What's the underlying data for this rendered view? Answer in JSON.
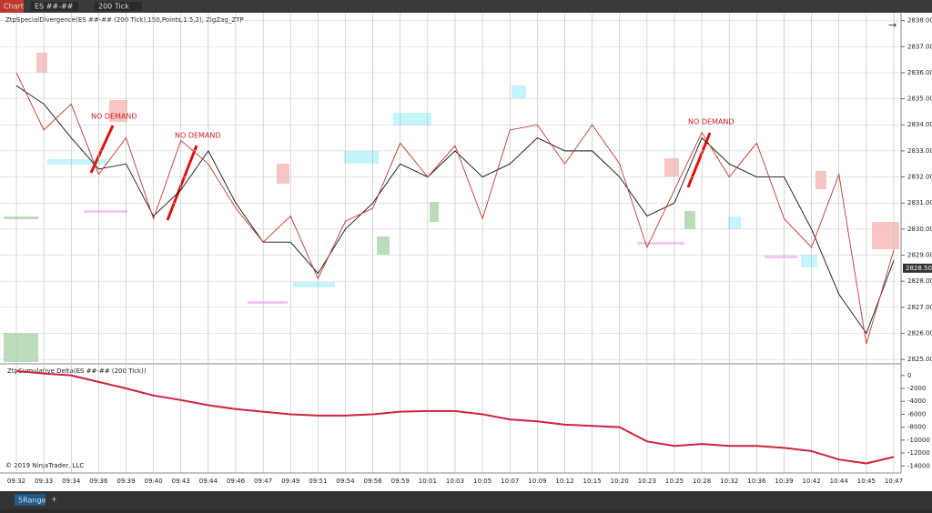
{
  "toolbar": {
    "tab": "Chart",
    "instrument": "ES ##-##",
    "interval": "200 Tick"
  },
  "chart_data": [
    {
      "type": "line",
      "title": "ZtpSpecialDivergence(ES ##-## (200 Tick),150,Points,1.5,2), ZigZag_ZTP",
      "categories": [
        "09:32",
        "09:33",
        "09:34",
        "09:36",
        "09:39",
        "09:40",
        "09:43",
        "09:44",
        "09:46",
        "09:47",
        "09:49",
        "09:51",
        "09:54",
        "09:56",
        "09:59",
        "10:01",
        "10:03",
        "10:05",
        "10:07",
        "10:09",
        "10:12",
        "10:15",
        "10:20",
        "10:23",
        "10:25",
        "10:28",
        "10:32",
        "10:36",
        "10:39",
        "10:42",
        "10:44",
        "10:45",
        "10:47"
      ],
      "series": [
        {
          "color": "#111111",
          "values": [
            2835.5,
            2834.8,
            2833.5,
            2832.3,
            2832.5,
            2830.5,
            2831.5,
            2833,
            2831,
            2829.5,
            2829.5,
            2828.3,
            2830,
            2831,
            2832.5,
            2832,
            2833,
            2832,
            2832.5,
            2833.5,
            2833,
            2833,
            2832,
            2830.5,
            2831,
            2833.5,
            2832.5,
            2832,
            2832,
            2830,
            2827.5,
            2826,
            2828.8
          ]
        },
        {
          "color": "#c0392b",
          "values": [
            2836,
            2833.8,
            2834.8,
            2832.1,
            2833.5,
            2830.4,
            2833.4,
            2832.5,
            2830.8,
            2829.5,
            2830.5,
            2828.1,
            2830.3,
            2830.8,
            2833.3,
            2832,
            2833.2,
            2830.4,
            2833.8,
            2834,
            2832.5,
            2834,
            2832.5,
            2829.3,
            2831.5,
            2833.7,
            2832,
            2833.3,
            2830.4,
            2829.3,
            2832.1,
            2825.6,
            2829.2
          ]
        }
      ],
      "ylim": [
        2824.9,
        2838.3
      ],
      "yticks": [
        {
          "value": 2825,
          "label": "2825.00"
        },
        {
          "value": 2826,
          "label": "2826.00"
        },
        {
          "value": 2827,
          "label": "2827.00"
        },
        {
          "value": 2828,
          "label": "2828.00"
        },
        {
          "value": 2829,
          "label": "2829.00"
        },
        {
          "value": 2830,
          "label": "2830.00"
        },
        {
          "value": 2831,
          "label": "2831.00"
        },
        {
          "value": 2832,
          "label": "2832.00"
        },
        {
          "value": 2833,
          "label": "2833.00"
        },
        {
          "value": 2834,
          "label": "2834.00"
        },
        {
          "value": 2835,
          "label": "2835.00"
        },
        {
          "value": 2836,
          "label": "2836.00"
        },
        {
          "value": 2837,
          "label": "2837.00"
        },
        {
          "value": 2838,
          "label": "2838.00"
        }
      ],
      "current": {
        "value": 2828.5,
        "label": "2828.50"
      },
      "annotations": [
        "NO DEMAND",
        "NO DEMAND",
        "NO DEMAND"
      ],
      "grid": true
    },
    {
      "type": "line",
      "title": "ZtpCumulative Delta(ES ##-## (200 Tick))",
      "series": [
        {
          "color": "#d0213f",
          "values": [
            700,
            300,
            0,
            -1000,
            -2000,
            -3100,
            -3800,
            -4600,
            -5200,
            -5600,
            -6000,
            -6200,
            -6200,
            -6000,
            -5600,
            -5500,
            -5500,
            -6000,
            -6800,
            -7100,
            -7600,
            -7800,
            -8000,
            -10200,
            -10900,
            -10600,
            -10900,
            -10900,
            -11200,
            -11700,
            -13000,
            -13600,
            -12600
          ]
        }
      ],
      "ylim": [
        -14800,
        1800
      ],
      "yticks": [
        0,
        -2000,
        -4000,
        -6000,
        -8000,
        -10000,
        -12000,
        -14000
      ]
    }
  ],
  "footer": {
    "copyright": "© 2019 NinjaTrader, LLC",
    "tab": "5Range",
    "add": "+"
  }
}
